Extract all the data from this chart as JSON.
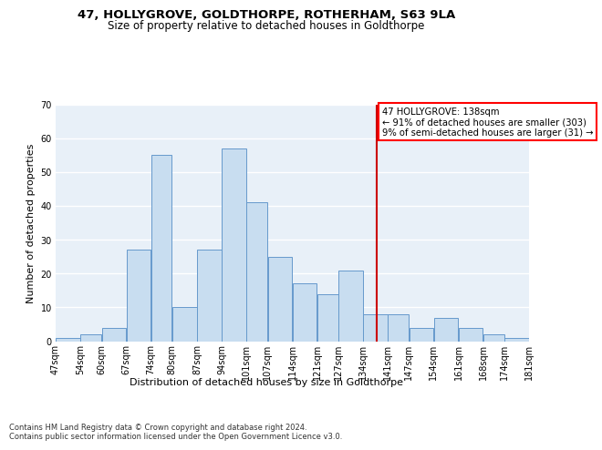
{
  "title1": "47, HOLLYGROVE, GOLDTHORPE, ROTHERHAM, S63 9LA",
  "title2": "Size of property relative to detached houses in Goldthorpe",
  "xlabel": "Distribution of detached houses by size in Goldthorpe",
  "ylabel": "Number of detached properties",
  "bar_color": "#c8ddf0",
  "bar_edge_color": "#6699cc",
  "background_color": "#e8f0f8",
  "annotation_line1": "47 HOLLYGROVE: 138sqm",
  "annotation_line2": "← 91% of detached houses are smaller (303)",
  "annotation_line3": "9% of semi-detached houses are larger (31) →",
  "vline_x": 138,
  "vline_color": "#cc0000",
  "footer_text": "Contains HM Land Registry data © Crown copyright and database right 2024.\nContains public sector information licensed under the Open Government Licence v3.0.",
  "bins": [
    47,
    54,
    60,
    67,
    74,
    80,
    87,
    94,
    101,
    107,
    114,
    121,
    127,
    134,
    141,
    147,
    154,
    161,
    168,
    174,
    181
  ],
  "bin_labels": [
    "47sqm",
    "54sqm",
    "60sqm",
    "67sqm",
    "74sqm",
    "80sqm",
    "87sqm",
    "94sqm",
    "101sqm",
    "107sqm",
    "114sqm",
    "121sqm",
    "127sqm",
    "134sqm",
    "141sqm",
    "147sqm",
    "154sqm",
    "161sqm",
    "168sqm",
    "174sqm",
    "181sqm"
  ],
  "values": [
    1,
    2,
    4,
    27,
    55,
    10,
    27,
    57,
    41,
    25,
    17,
    14,
    21,
    8,
    8,
    4,
    7,
    4,
    2,
    1
  ],
  "ylim": [
    0,
    70
  ],
  "yticks": [
    0,
    10,
    20,
    30,
    40,
    50,
    60,
    70
  ],
  "title1_fontsize": 9.5,
  "title2_fontsize": 8.5,
  "ylabel_fontsize": 8,
  "xlabel_fontsize": 8,
  "tick_fontsize": 7,
  "footer_fontsize": 6
}
